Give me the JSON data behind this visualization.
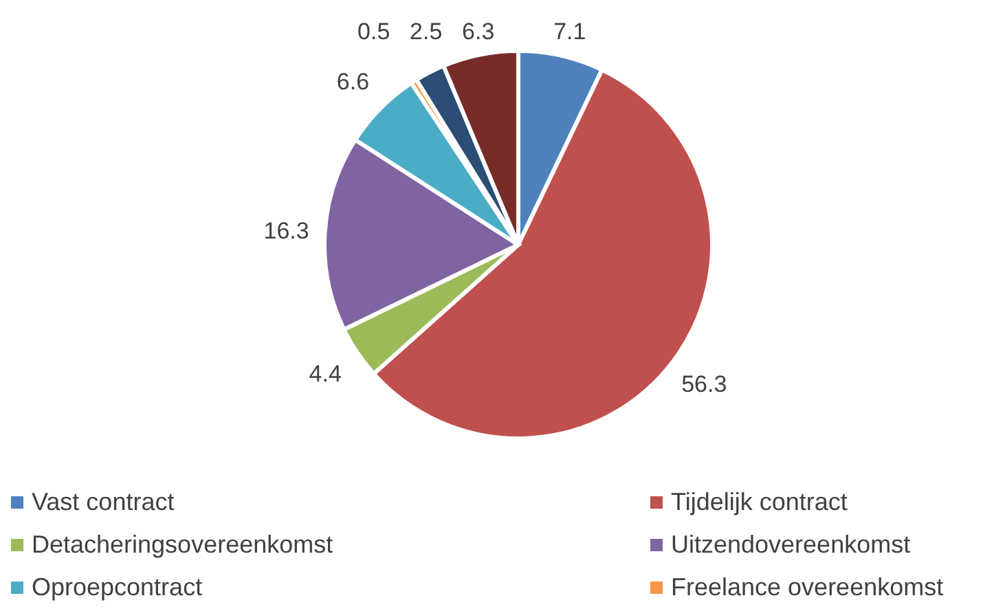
{
  "chart_data": {
    "type": "pie",
    "categories": [
      "Vast contract",
      "Tijdelijk contract",
      "Detacheringsovereenkomst",
      "Uitzendovereenkomst",
      "Oproepcontract",
      "Freelance overeenkomst",
      null,
      null
    ],
    "values": [
      7.1,
      56.3,
      4.4,
      16.3,
      6.6,
      0.5,
      2.5,
      6.3
    ],
    "colors": [
      "#4f81bd",
      "#c0504d",
      "#9bbb59",
      "#8064a2",
      "#4bacc6",
      "#f79646",
      "#2c4d75",
      "#772c2a"
    ],
    "data_labels": true,
    "legend": "bottom"
  }
}
